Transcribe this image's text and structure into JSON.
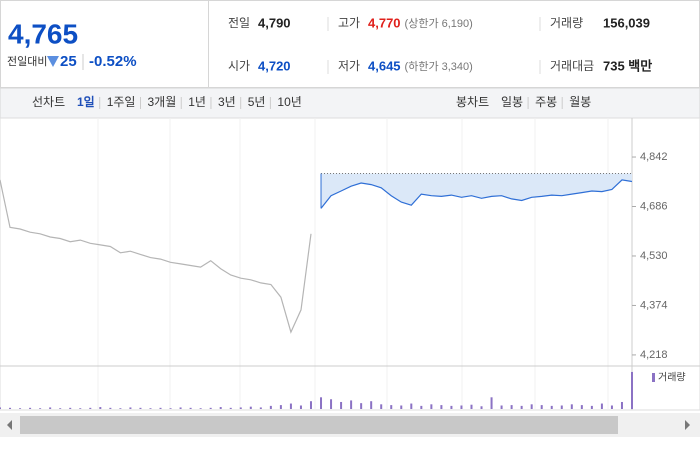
{
  "quote": {
    "price": "4,765",
    "change_label": "전일대비",
    "change": "25",
    "change_pct": "-0.52%"
  },
  "stats": [
    [
      {
        "label": "전일",
        "value": "4,790"
      },
      {
        "label": "고가",
        "value": "4,770",
        "note": "(상한가 6,190)"
      },
      {
        "label": "거래량",
        "value": "156,039"
      }
    ],
    [
      {
        "label": "시가",
        "value": "4,720"
      },
      {
        "label": "저가",
        "value": "4,645",
        "note": "(하한가 3,340)"
      },
      {
        "label": "거래대금",
        "value": "735 백만"
      }
    ]
  ],
  "tabs": {
    "line_label": "선차트",
    "line": [
      "1일",
      "1주일",
      "3개월",
      "1년",
      "3년",
      "5년",
      "10년"
    ],
    "candle_label": "봉차트",
    "candle": [
      "일봉",
      "주봉",
      "월봉"
    ]
  },
  "chart_data": [
    {
      "type": "line",
      "ylim": [
        4202,
        4943
      ],
      "yticks": [
        {
          "value": 4842,
          "label": "4,842"
        },
        {
          "value": 4686,
          "label": "4,686"
        },
        {
          "value": 4530,
          "label": "4,530"
        },
        {
          "value": 4374,
          "label": "4,374"
        },
        {
          "value": 4218,
          "label": "4,218"
        }
      ],
      "reference": 4790,
      "series": [
        {
          "color": "#b5b5b5",
          "values": [
            4770,
            4620,
            4615,
            4605,
            4600,
            4590,
            4585,
            4575,
            4580,
            4570,
            4565,
            4560,
            4540,
            4545,
            4535,
            4525,
            4520,
            4510,
            4505,
            4500,
            4495,
            4515,
            4490,
            4470,
            4460,
            4455,
            4445,
            4440,
            4400,
            4290,
            4360,
            4600,
            null,
            null,
            null,
            null,
            null,
            null,
            null,
            null,
            null,
            null,
            null,
            null,
            null,
            null,
            null,
            null,
            null,
            null,
            null,
            null,
            null,
            null,
            null,
            null,
            null,
            null,
            null,
            null,
            null,
            null,
            null,
            null
          ]
        },
        {
          "color": "#2f6fd6",
          "values": [
            null,
            null,
            null,
            null,
            null,
            null,
            null,
            null,
            null,
            null,
            null,
            null,
            null,
            null,
            null,
            null,
            null,
            null,
            null,
            null,
            null,
            null,
            null,
            null,
            null,
            null,
            null,
            null,
            null,
            null,
            null,
            null,
            4680,
            4720,
            4735,
            4750,
            4760,
            4755,
            4745,
            4720,
            4700,
            4690,
            4725,
            4720,
            4718,
            4722,
            4715,
            4720,
            4712,
            4718,
            4720,
            4710,
            4705,
            4715,
            4718,
            4722,
            4720,
            4725,
            4730,
            4735,
            4733,
            4740,
            4770,
            4765
          ]
        }
      ]
    },
    {
      "type": "bar",
      "ylim": [
        0,
        100
      ],
      "series": [
        {
          "name": "거래량",
          "color": "#8b72c4",
          "values": [
            4,
            3,
            2,
            3,
            2,
            4,
            2,
            3,
            2,
            3,
            5,
            3,
            2,
            4,
            3,
            2,
            3,
            2,
            4,
            3,
            2,
            3,
            5,
            3,
            4,
            6,
            4,
            8,
            10,
            14,
            9,
            20,
            30,
            25,
            18,
            22,
            15,
            20,
            12,
            10,
            9,
            14,
            8,
            12,
            10,
            8,
            9,
            11,
            7,
            30,
            9,
            10,
            8,
            12,
            10,
            8,
            9,
            12,
            10,
            8,
            14,
            9,
            18,
            95
          ]
        }
      ]
    }
  ]
}
